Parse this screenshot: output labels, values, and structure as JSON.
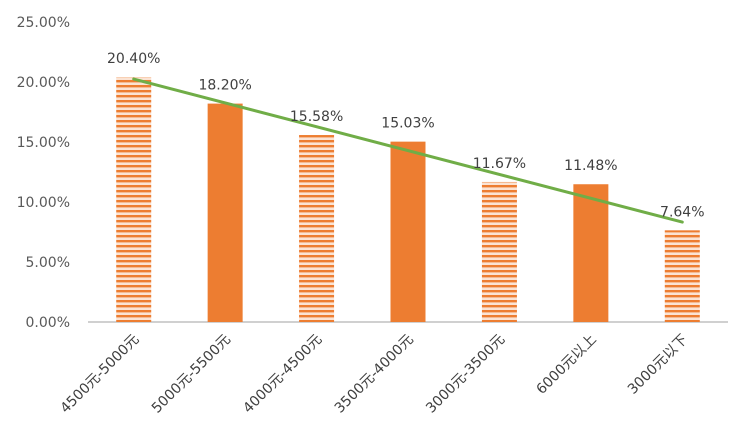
{
  "chart_data": {
    "type": "bar",
    "categories": [
      "4500元-5000元",
      "5000元-5500元",
      "4000元-4500元",
      "3500元-4000元",
      "3000元-3500元",
      "6000元以上",
      "3000元以下"
    ],
    "values": [
      20.4,
      18.2,
      15.58,
      15.03,
      11.67,
      11.48,
      7.64
    ],
    "data_labels": [
      "20.40%",
      "18.20%",
      "15.58%",
      "15.03%",
      "11.67%",
      "11.48%",
      "7.64%"
    ],
    "bar_styles": [
      "striped",
      "solid",
      "striped",
      "solid",
      "striped",
      "solid",
      "striped"
    ],
    "y_ticks": [
      0,
      5,
      10,
      15,
      20,
      25
    ],
    "y_tick_labels": [
      "0.00%",
      "5.00%",
      "10.00%",
      "15.00%",
      "20.00%",
      "25.00%"
    ],
    "ylim": [
      0,
      25
    ],
    "trendline": {
      "type": "linear",
      "color": "#70ad47"
    },
    "bar_color": "#ed7d31",
    "grid": false,
    "legend": "none"
  }
}
